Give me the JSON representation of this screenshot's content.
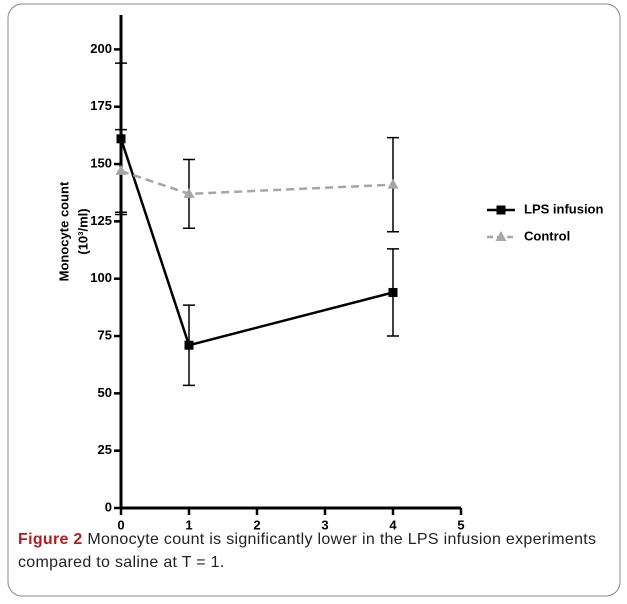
{
  "chart_data": {
    "type": "line",
    "x": [
      0,
      1,
      4
    ],
    "xlim": [
      0,
      5
    ],
    "xticks": [
      0,
      1,
      2,
      3,
      4,
      5
    ],
    "ylim": [
      0,
      215
    ],
    "yticks": [
      0,
      25,
      50,
      75,
      100,
      125,
      150,
      175,
      200
    ],
    "ylabel": [
      "Monocyte count",
      "(10³/ml)"
    ],
    "legend": "right",
    "series": [
      {
        "name": "LPS infusion",
        "color": "#000000",
        "marker": "square",
        "dash": false,
        "values": [
          161,
          71,
          94
        ],
        "errors": [
          33,
          17.5,
          19
        ]
      },
      {
        "name": "Control",
        "color": "#a6a6a6",
        "marker": "triangle",
        "dash": true,
        "values": [
          147,
          137,
          141
        ],
        "errors": [
          18,
          15,
          20.5
        ]
      }
    ]
  },
  "caption": {
    "label": "Figure 2",
    "text": "Monocyte count is significantly lower in the LPS infusion experiments compared to saline at T = 1."
  }
}
